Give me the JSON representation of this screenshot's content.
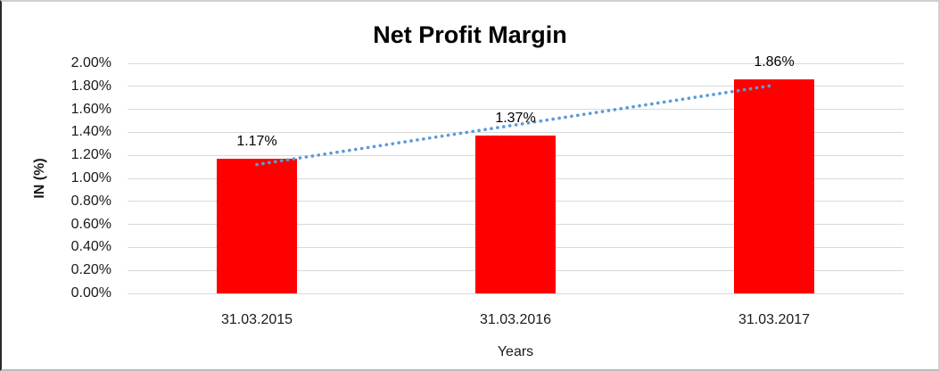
{
  "chart_data": {
    "type": "bar",
    "title": "Net Profit Margin",
    "xlabel": "Years",
    "ylabel": "IN (%)",
    "categories": [
      "31.03.2015",
      "31.03.2016",
      "31.03.2017"
    ],
    "values": [
      1.17,
      1.37,
      1.86
    ],
    "data_labels": [
      "1.17%",
      "1.37%",
      "1.86%"
    ],
    "ylim": [
      0,
      2.0
    ],
    "ytick_labels": [
      "0.00%",
      "0.20%",
      "0.40%",
      "0.60%",
      "0.80%",
      "1.00%",
      "1.20%",
      "1.40%",
      "1.60%",
      "1.80%",
      "2.00%"
    ],
    "grid": true,
    "legend": "none",
    "bar_color": "#ff0000",
    "gridline_color": "#d9d9d9",
    "text_color": "#1a1a1a",
    "trendline": {
      "type": "linear",
      "style": "dotted",
      "color": "#5b9bd5",
      "start_value": 1.12,
      "end_value": 1.81
    }
  }
}
